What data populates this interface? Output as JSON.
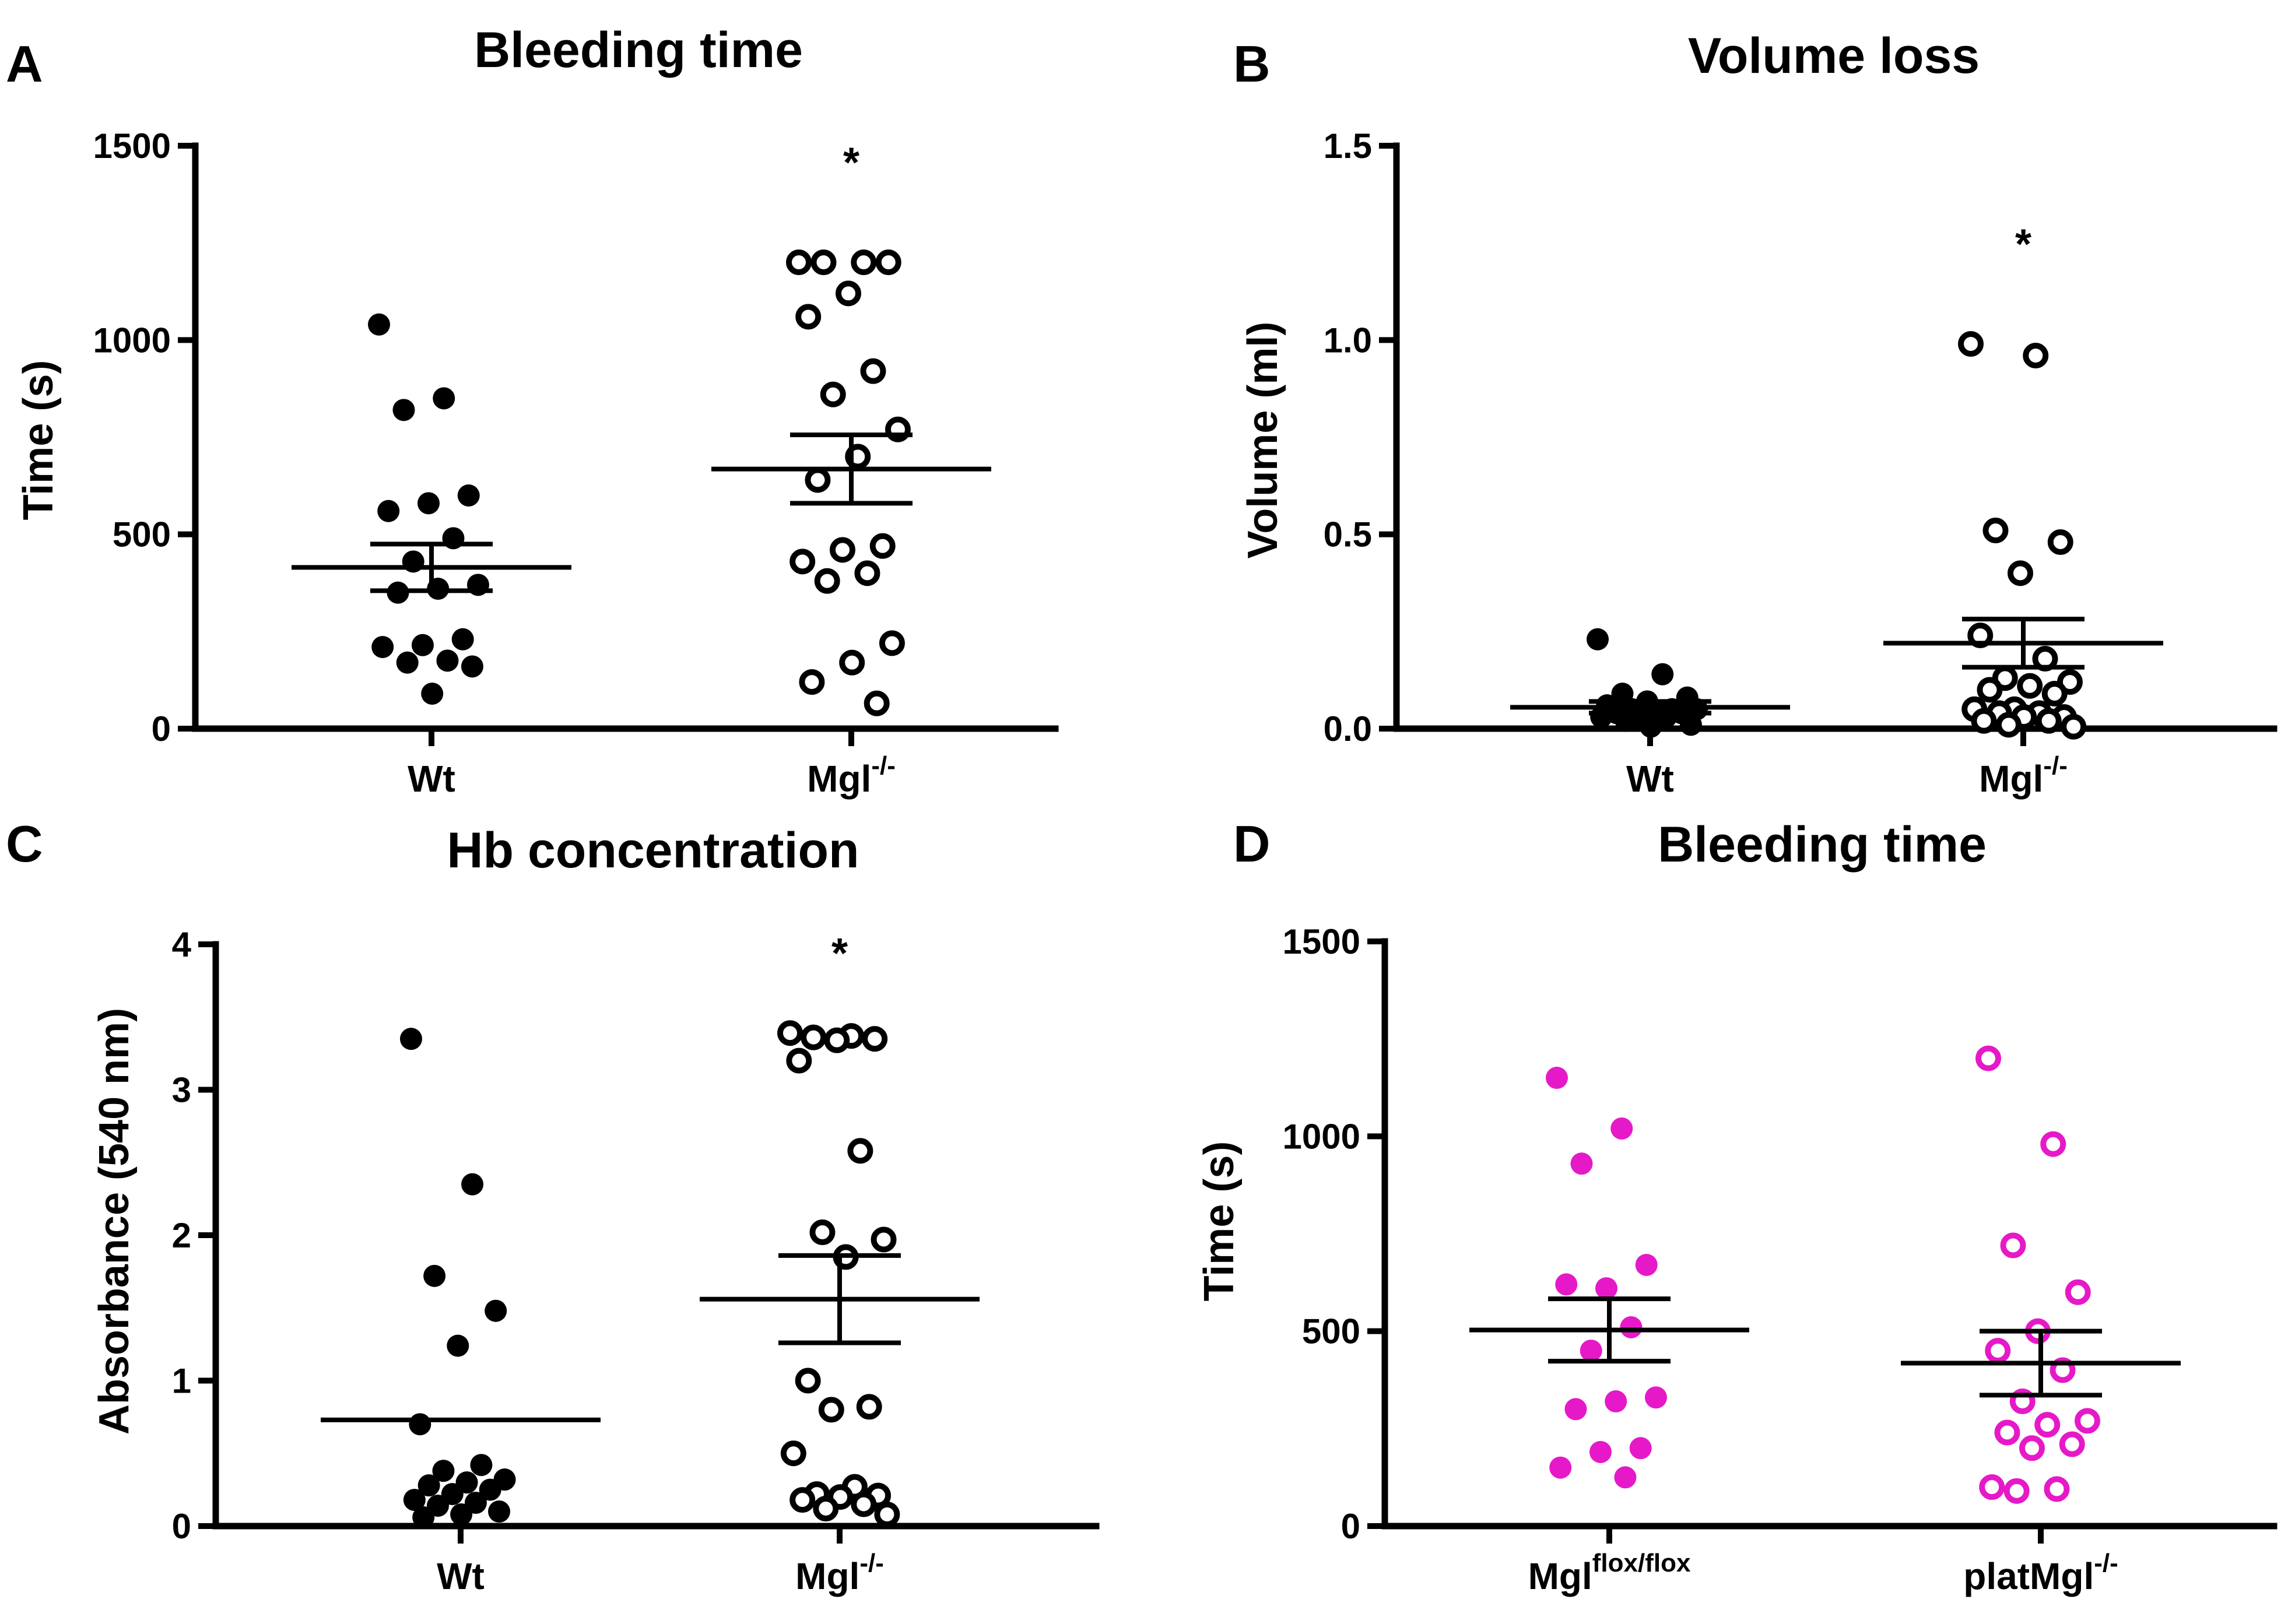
{
  "chart_data": [
    {
      "panel": "A",
      "type": "scatter",
      "title": "Bleeding time",
      "ylabel": "Time (s)",
      "xlabel": "",
      "ylim": [
        0,
        1500
      ],
      "yticks": [
        0,
        500,
        1000,
        1500
      ],
      "categories": [
        {
          "main": "Wt",
          "sup": ""
        },
        {
          "main": "Mgl",
          "sup": "-/-"
        }
      ],
      "series": [
        {
          "name": "Wt",
          "marker": "filled",
          "color": "#000000",
          "values": [
            1040,
            850,
            820,
            600,
            580,
            560,
            490,
            430,
            370,
            360,
            350,
            230,
            215,
            210,
            175,
            170,
            160,
            90
          ],
          "mean": 415,
          "sem": 60
        },
        {
          "name": "Mgl-/-",
          "marker": "open",
          "color": "#000000",
          "values": [
            1200,
            1200,
            1200,
            1200,
            1120,
            1060,
            920,
            860,
            770,
            700,
            640,
            470,
            460,
            430,
            400,
            380,
            220,
            170,
            120,
            65
          ],
          "mean": 668,
          "sem": 88
        }
      ],
      "annotations": [
        {
          "text": "*",
          "category": 1,
          "y": 1480
        }
      ]
    },
    {
      "panel": "B",
      "type": "scatter",
      "title": "Volume loss",
      "ylabel": "Volume (ml)",
      "xlabel": "",
      "ylim": [
        0,
        1.5
      ],
      "yticks": [
        "0.0",
        "0.5",
        "1.0",
        "1.5"
      ],
      "categories": [
        {
          "main": "Wt",
          "sup": ""
        },
        {
          "main": "Mgl",
          "sup": "-/-"
        }
      ],
      "series": [
        {
          "name": "Wt",
          "marker": "filled",
          "color": "#000000",
          "values": [
            0.23,
            0.14,
            0.09,
            0.08,
            0.07,
            0.06,
            0.05,
            0.05,
            0.05,
            0.04,
            0.04,
            0.04,
            0.03,
            0.03,
            0.03,
            0.02,
            0.01,
            0.005
          ],
          "mean": 0.055,
          "sem": 0.015
        },
        {
          "name": "Mgl-/-",
          "marker": "open",
          "color": "#000000",
          "values": [
            0.99,
            0.96,
            0.51,
            0.48,
            0.4,
            0.24,
            0.18,
            0.13,
            0.12,
            0.11,
            0.1,
            0.09,
            0.05,
            0.05,
            0.04,
            0.04,
            0.03,
            0.03,
            0.02,
            0.02,
            0.01,
            0.005
          ],
          "mean": 0.22,
          "sem": 0.062
        }
      ],
      "annotations": [
        {
          "text": "*",
          "category": 1,
          "y": 1.27
        }
      ]
    },
    {
      "panel": "C",
      "type": "scatter",
      "title": "Hb concentration",
      "ylabel": "Absorbance (540 nm)",
      "xlabel": "",
      "ylim": [
        0,
        4
      ],
      "yticks": [
        0,
        1,
        2,
        3,
        4
      ],
      "categories": [
        {
          "main": "Wt",
          "sup": ""
        },
        {
          "main": "Mgl",
          "sup": "-/-"
        }
      ],
      "series": [
        {
          "name": "Wt",
          "marker": "filled",
          "color": "#000000",
          "values": [
            3.35,
            2.35,
            1.72,
            1.48,
            1.24,
            0.7,
            0.42,
            0.38,
            0.32,
            0.3,
            0.28,
            0.25,
            0.22,
            0.18,
            0.16,
            0.14,
            0.1,
            0.08,
            0.06
          ],
          "mean": 0.73,
          "sem": 0.0
        },
        {
          "name": "Mgl-/-",
          "marker": "open",
          "color": "#000000",
          "values": [
            3.39,
            3.37,
            3.36,
            3.35,
            3.34,
            3.2,
            2.58,
            2.02,
            1.97,
            1.85,
            1.0,
            0.82,
            0.8,
            0.5,
            0.27,
            0.22,
            0.21,
            0.2,
            0.18,
            0.15,
            0.12,
            0.08
          ],
          "mean": 1.56,
          "sem": 0.3
        }
      ],
      "annotations": [
        {
          "text": "*",
          "category": 1,
          "y": 4.0
        }
      ]
    },
    {
      "panel": "D",
      "type": "scatter",
      "title": "Bleeding time",
      "ylabel": "Time (s)",
      "xlabel": "",
      "ylim": [
        0,
        1500
      ],
      "yticks": [
        0,
        500,
        1000,
        1500
      ],
      "categories": [
        {
          "main": "Mgl",
          "sup": "flox/flox"
        },
        {
          "main": "platMgl",
          "sup": "-/-"
        }
      ],
      "series": [
        {
          "name": "Mgl flox/flox",
          "marker": "filled",
          "color": "#e619c8",
          "values": [
            1150,
            1020,
            930,
            670,
            610,
            620,
            510,
            450,
            330,
            320,
            300,
            200,
            190,
            150,
            125
          ],
          "mean": 503,
          "sem": 80
        },
        {
          "name": "platMgl-/-",
          "marker": "open",
          "color": "#e619c8",
          "values": [
            1200,
            980,
            720,
            600,
            500,
            450,
            400,
            320,
            270,
            260,
            240,
            210,
            200,
            100,
            95,
            90
          ],
          "mean": 418,
          "sem": 82
        }
      ],
      "annotations": []
    }
  ]
}
